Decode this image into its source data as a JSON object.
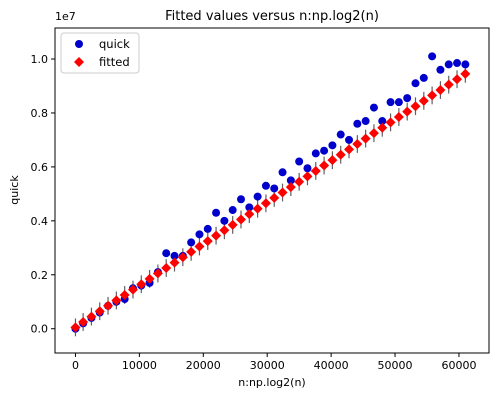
{
  "chart_data": {
    "type": "scatter",
    "title": "Fitted values versus n:np.log2(n)",
    "xlabel": "n:np.log2(n)",
    "ylabel": "quick",
    "y_offset_label": "1e7",
    "y_scale": 10000000,
    "xlim": [
      -3200,
      64700
    ],
    "ylim": [
      -900000,
      11150000
    ],
    "xticks": [
      0,
      10000,
      20000,
      30000,
      40000,
      50000,
      60000
    ],
    "xtick_labels": [
      "0",
      "10000",
      "20000",
      "30000",
      "40000",
      "50000",
      "60000"
    ],
    "yticks": [
      0,
      2000000,
      4000000,
      6000000,
      8000000,
      10000000
    ],
    "ytick_labels": [
      "0.0",
      "0.2",
      "0.4",
      "0.6",
      "0.8",
      "1.0"
    ],
    "legend_position": "top-left",
    "x": [
      0,
      1200,
      2500,
      3800,
      5100,
      6400,
      7700,
      9000,
      10300,
      11600,
      12900,
      14200,
      15500,
      16800,
      18100,
      19400,
      20700,
      22000,
      23300,
      24600,
      25900,
      27200,
      28500,
      29800,
      31100,
      32400,
      33700,
      35000,
      36300,
      37600,
      38900,
      40200,
      41500,
      42800,
      44100,
      45400,
      46700,
      48000,
      49300,
      50600,
      51900,
      53200,
      54500,
      55800,
      57100,
      58400,
      59700,
      61000
    ],
    "series": [
      {
        "name": "quick",
        "color": "#0000cc",
        "marker": "circle",
        "values": [
          0,
          200000,
          400000,
          600000,
          850000,
          1000000,
          1100000,
          1500000,
          1600000,
          1700000,
          2100000,
          2800000,
          2700000,
          2700000,
          3200000,
          3500000,
          3700000,
          4300000,
          4000000,
          4400000,
          4800000,
          4500000,
          4900000,
          5300000,
          5200000,
          5800000,
          5500000,
          6200000,
          5950000,
          6500000,
          6600000,
          6800000,
          7200000,
          7000000,
          7600000,
          7700000,
          8200000,
          7700000,
          8400000,
          8400000,
          8550000,
          9100000,
          9300000,
          10100000,
          9600000,
          9800000,
          9850000,
          9800000
        ]
      },
      {
        "name": "fitted",
        "color": "#ff0000",
        "marker": "diamond",
        "values": [
          50000,
          250000,
          450000,
          650000,
          850000,
          1050000,
          1250000,
          1450000,
          1650000,
          1850000,
          2050000,
          2250000,
          2450000,
          2650000,
          2850000,
          3050000,
          3250000,
          3450000,
          3650000,
          3850000,
          4050000,
          4250000,
          4450000,
          4650000,
          4850000,
          5050000,
          5250000,
          5450000,
          5650000,
          5850000,
          6050000,
          6250000,
          6450000,
          6650000,
          6850000,
          7050000,
          7250000,
          7450000,
          7650000,
          7850000,
          8050000,
          8250000,
          8450000,
          8650000,
          8850000,
          9050000,
          9250000,
          9450000
        ],
        "error": 330000
      }
    ]
  }
}
